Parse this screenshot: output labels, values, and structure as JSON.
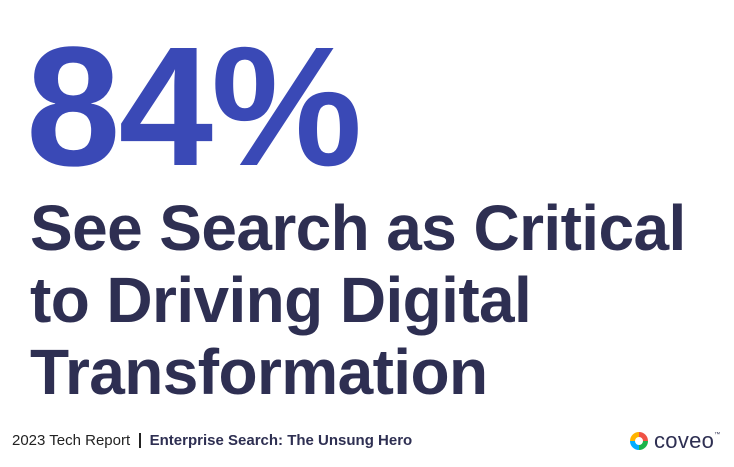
{
  "stat": "84%",
  "headline": [
    "See Search as Critical",
    "to Driving Digital",
    "Transformation"
  ],
  "footer": {
    "report": "2023 Tech Report",
    "subtitle": "Enterprise Search: The Unsung Hero"
  },
  "logo": {
    "name": "coveo",
    "mark": "™"
  }
}
